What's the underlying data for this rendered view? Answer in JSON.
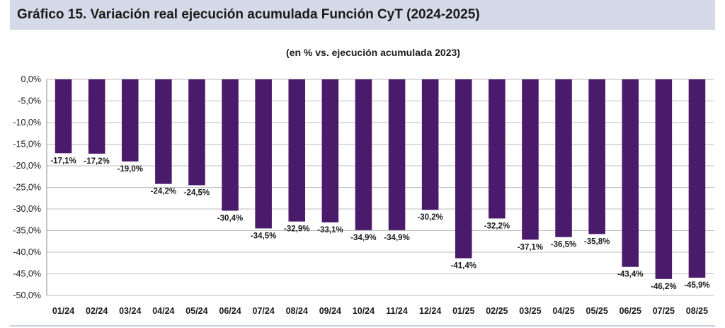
{
  "header": {
    "title": "Gráfico 15. Variación real ejecución acumulada Función CyT (2024-2025)"
  },
  "colors": {
    "bar": "#4a1a6b",
    "header_band": "#d6dae8",
    "grid": "#bdbdbd"
  },
  "chart_data": {
    "type": "bar",
    "title": "",
    "subtitle": "(en % vs. ejecución acumulada 2023)",
    "xlabel": "",
    "ylabel": "",
    "ylim": [
      -50,
      0
    ],
    "yticks": [
      0,
      -5,
      -10,
      -15,
      -20,
      -25,
      -30,
      -35,
      -40,
      -45,
      -50
    ],
    "ytick_labels": [
      "0,0%",
      "-5,0%",
      "-10,0%",
      "-15,0%",
      "-20,0%",
      "-25,0%",
      "-30,0%",
      "-35,0%",
      "-40,0%",
      "-45,0%",
      "-50,0%"
    ],
    "grid": true,
    "categories": [
      "01/24",
      "02/24",
      "03/24",
      "04/24",
      "05/24",
      "06/24",
      "07/24",
      "08/24",
      "09/24",
      "10/24",
      "11/24",
      "12/24",
      "01/25",
      "02/25",
      "03/25",
      "04/25",
      "05/25",
      "06/25",
      "07/25",
      "08/25"
    ],
    "values": [
      -17.1,
      -17.2,
      -19.0,
      -24.2,
      -24.5,
      -30.4,
      -34.5,
      -32.9,
      -33.1,
      -34.9,
      -34.9,
      -30.2,
      -41.4,
      -32.2,
      -37.1,
      -36.5,
      -35.8,
      -43.4,
      -46.2,
      -45.9
    ],
    "value_labels": [
      "-17,1%",
      "-17,2%",
      "-19,0%",
      "-24,2%",
      "-24,5%",
      "-30,4%",
      "-34,5%",
      "-32,9%",
      "-33,1%",
      "-34,9%",
      "-34,9%",
      "-30,2%",
      "-41,4%",
      "-32,2%",
      "-37,1%",
      "-36,5%",
      "-35,8%",
      "-43,4%",
      "-46,2%",
      "-45,9%"
    ]
  }
}
